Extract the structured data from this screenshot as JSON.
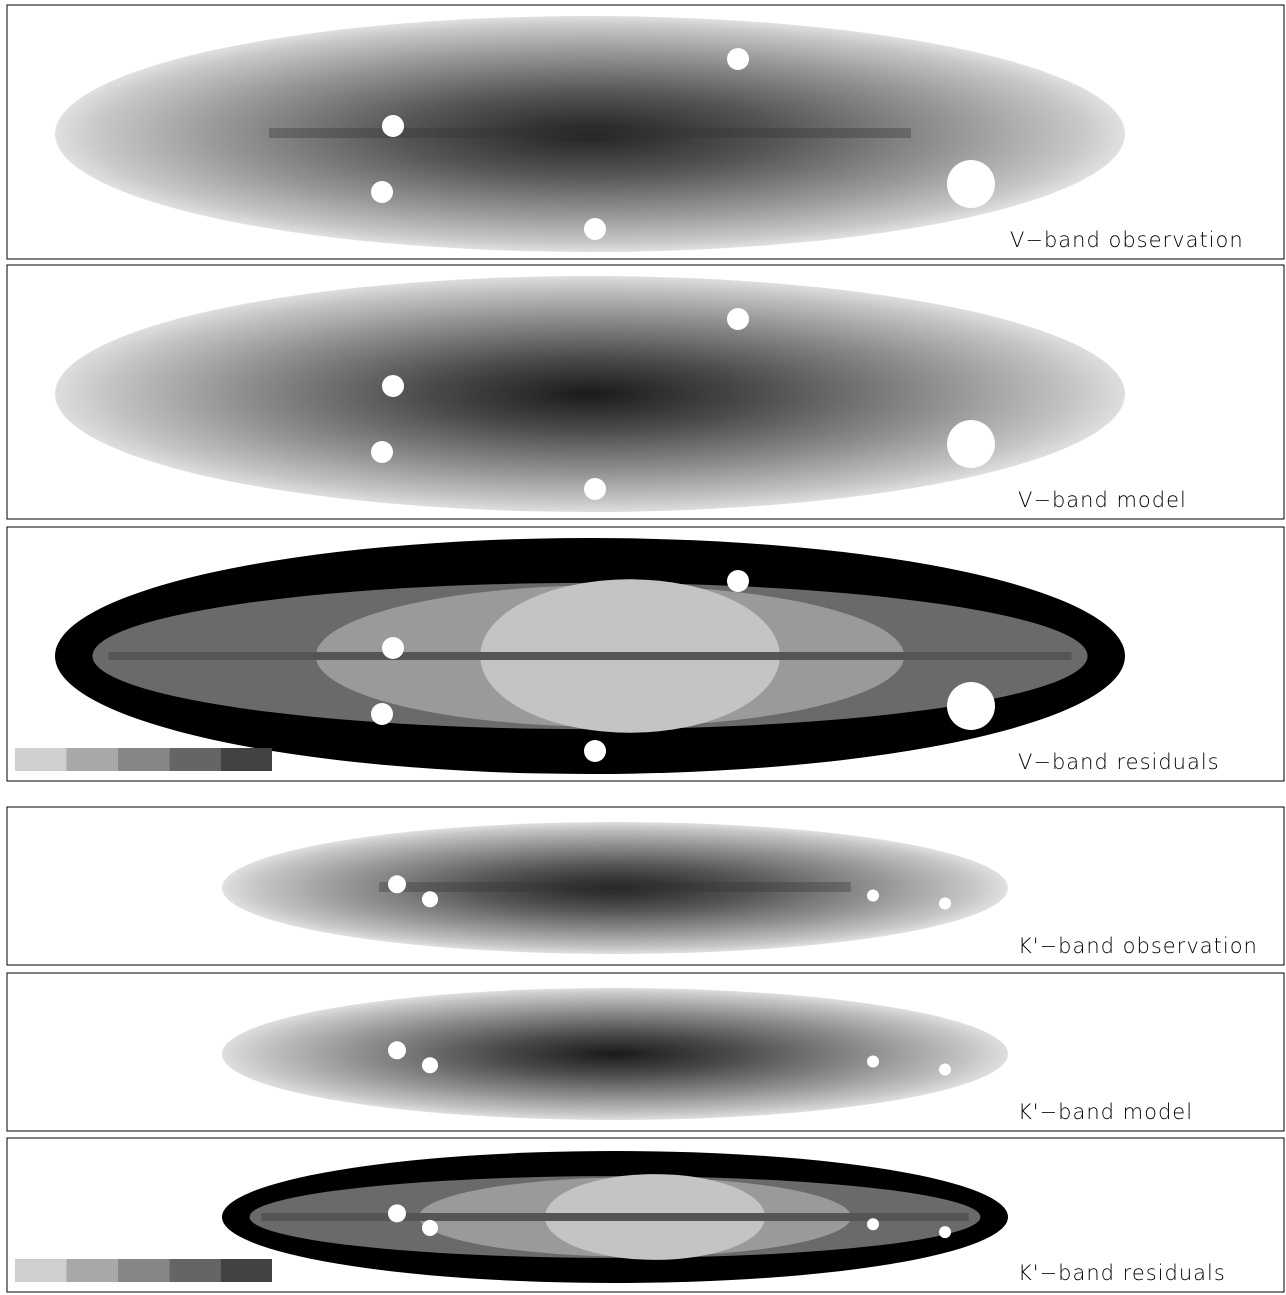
{
  "panels": [
    {
      "label": "V−band observation"
    },
    {
      "label": "V−band model"
    },
    {
      "label": "V−band residuals"
    },
    {
      "label": "K'−band observation"
    },
    {
      "label": "K'−band model"
    },
    {
      "label": "K'−band residuals"
    }
  ]
}
